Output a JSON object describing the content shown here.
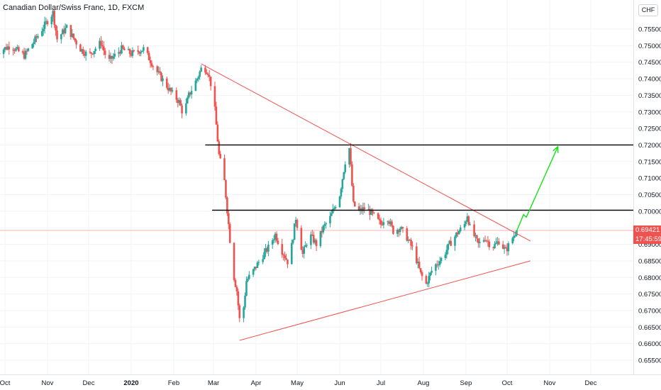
{
  "header": {
    "title": "Canadian Dollar/Swiss Franc, 1D, FXCM",
    "currency": "CHF"
  },
  "price_tags": {
    "last_price": "0.69421",
    "countdown": "17:45:59"
  },
  "colors": {
    "up": "#26a69a",
    "down": "#ef5350",
    "trendline": "#ef5350",
    "level": "#000000",
    "arrow": "#00e600",
    "price_line": "#f7b5b3"
  },
  "chart_data": {
    "type": "candlestick",
    "symbol": "CAD/CHF",
    "interval": "1D",
    "source": "FXCM",
    "y_ticks": [
      "0.75500",
      "0.75000",
      "0.74500",
      "0.74000",
      "0.73500",
      "0.73000",
      "0.72500",
      "0.72000",
      "0.71500",
      "0.71000",
      "0.70500",
      "0.70000",
      "0.69500",
      "0.69000",
      "0.68500",
      "0.68000",
      "0.67500",
      "0.67000",
      "0.66500",
      "0.66000",
      "0.65500"
    ],
    "x_ticks": [
      "Oct",
      "Nov",
      "Dec",
      "2020",
      "Feb",
      "Mar",
      "Apr",
      "May",
      "Jun",
      "Jul",
      "Aug",
      "Sep",
      "Oct",
      "Nov",
      "Dec"
    ],
    "x_tick_dates": [
      "2019-10-01",
      "2019-11-01",
      "2019-12-01",
      "2020-01-01",
      "2020-02-01",
      "2020-03-01",
      "2020-04-01",
      "2020-05-01",
      "2020-06-01",
      "2020-07-01",
      "2020-08-01",
      "2020-09-01",
      "2020-10-01",
      "2020-11-01",
      "2020-12-01"
    ],
    "ylim": [
      0.6512,
      0.759
    ],
    "last_price": 0.69421,
    "close_path": [
      [
        "2019-09-25",
        0.748
      ],
      [
        "2019-10-05",
        0.75
      ],
      [
        "2019-10-15",
        0.747
      ],
      [
        "2019-10-25",
        0.753
      ],
      [
        "2019-11-01",
        0.7575
      ],
      [
        "2019-11-05",
        0.76
      ],
      [
        "2019-11-08",
        0.752
      ],
      [
        "2019-11-15",
        0.7555
      ],
      [
        "2019-11-25",
        0.749
      ],
      [
        "2019-12-01",
        0.747
      ],
      [
        "2019-12-10",
        0.751
      ],
      [
        "2019-12-15",
        0.745
      ],
      [
        "2019-12-25",
        0.749
      ],
      [
        "2020-01-01",
        0.7475
      ],
      [
        "2020-01-10",
        0.749
      ],
      [
        "2020-01-20",
        0.742
      ],
      [
        "2020-01-30",
        0.736
      ],
      [
        "2020-02-05",
        0.733
      ],
      [
        "2020-02-08",
        0.729
      ],
      [
        "2020-02-12",
        0.735
      ],
      [
        "2020-02-18",
        0.74
      ],
      [
        "2020-02-22",
        0.744
      ],
      [
        "2020-02-26",
        0.742
      ],
      [
        "2020-03-01",
        0.735
      ],
      [
        "2020-03-03",
        0.726
      ],
      [
        "2020-03-05",
        0.717
      ],
      [
        "2020-03-09",
        0.709
      ],
      [
        "2020-03-12",
        0.696
      ],
      [
        "2020-03-15",
        0.682
      ],
      [
        "2020-03-18",
        0.676
      ],
      [
        "2020-03-21",
        0.663
      ],
      [
        "2020-03-25",
        0.679
      ],
      [
        "2020-03-30",
        0.682
      ],
      [
        "2020-04-05",
        0.686
      ],
      [
        "2020-04-10",
        0.689
      ],
      [
        "2020-04-15",
        0.693
      ],
      [
        "2020-04-20",
        0.688
      ],
      [
        "2020-04-25",
        0.684
      ],
      [
        "2020-04-30",
        0.698
      ],
      [
        "2020-05-05",
        0.687
      ],
      [
        "2020-05-10",
        0.693
      ],
      [
        "2020-05-15",
        0.69
      ],
      [
        "2020-05-20",
        0.695
      ],
      [
        "2020-05-25",
        0.698
      ],
      [
        "2020-06-01",
        0.705
      ],
      [
        "2020-06-05",
        0.715
      ],
      [
        "2020-06-08",
        0.719
      ],
      [
        "2020-06-11",
        0.702
      ],
      [
        "2020-06-15",
        0.7
      ],
      [
        "2020-06-20",
        0.701
      ],
      [
        "2020-06-25",
        0.699
      ],
      [
        "2020-07-01",
        0.696
      ],
      [
        "2020-07-05",
        0.699
      ],
      [
        "2020-07-10",
        0.694
      ],
      [
        "2020-07-15",
        0.695
      ],
      [
        "2020-07-20",
        0.692
      ],
      [
        "2020-07-25",
        0.688
      ],
      [
        "2020-07-30",
        0.681
      ],
      [
        "2020-08-03",
        0.678
      ],
      [
        "2020-08-08",
        0.683
      ],
      [
        "2020-08-15",
        0.686
      ],
      [
        "2020-08-20",
        0.69
      ],
      [
        "2020-08-25",
        0.693
      ],
      [
        "2020-08-31",
        0.696
      ],
      [
        "2020-09-02",
        0.699
      ],
      [
        "2020-09-04",
        0.695
      ],
      [
        "2020-09-10",
        0.69
      ],
      [
        "2020-09-15",
        0.692
      ],
      [
        "2020-09-20",
        0.689
      ],
      [
        "2020-09-25",
        0.691
      ],
      [
        "2020-09-30",
        0.688
      ],
      [
        "2020-10-05",
        0.692
      ],
      [
        "2020-10-08",
        0.6942
      ]
    ],
    "drawings": {
      "descending_trendline": {
        "from": [
          "2020-02-21",
          0.7445
        ],
        "to": [
          "2020-10-18",
          0.691
        ]
      },
      "ascending_trendline": {
        "from": [
          "2020-03-20",
          0.661
        ],
        "to": [
          "2020-10-18",
          0.685
        ]
      },
      "resistance_level": {
        "price": 0.72,
        "from": "2020-02-24",
        "to": "2020-12-31"
      },
      "support_level": {
        "price": 0.7003,
        "from": "2020-02-29",
        "to": "2020-12-31"
      },
      "projection_arrow": [
        [
          "2020-10-08",
          0.694
        ],
        [
          "2020-10-13",
          0.699
        ],
        [
          "2020-10-15",
          0.6982
        ],
        [
          "2020-11-07",
          0.7195
        ]
      ]
    }
  }
}
